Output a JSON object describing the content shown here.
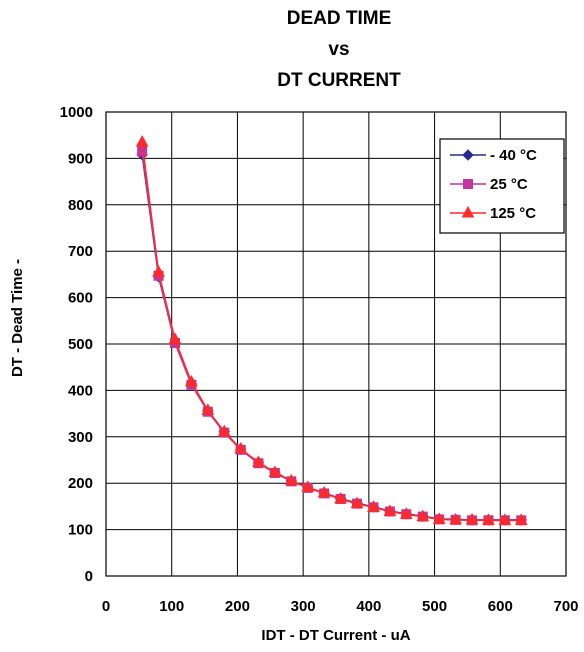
{
  "chart_data": {
    "type": "line",
    "title_lines": [
      "DEAD TIME",
      "vs",
      "DT CURRENT"
    ],
    "xlabel": "IDT - DT Current - uA",
    "ylabel": "DT - Dead Time -",
    "xlim": [
      0,
      700
    ],
    "ylim": [
      0,
      1000
    ],
    "xticks": [
      "0",
      "100",
      "200",
      "300",
      "400",
      "500",
      "600",
      "700"
    ],
    "yticks": [
      "0",
      "100",
      "200",
      "300",
      "400",
      "500",
      "600",
      "700",
      "800",
      "900",
      "1000"
    ],
    "grid": true,
    "legend_position": "top-right",
    "x": [
      55,
      80,
      105,
      130,
      155,
      180,
      205,
      232,
      257,
      282,
      307,
      332,
      357,
      382,
      407,
      432,
      457,
      482,
      507,
      532,
      557,
      582,
      607,
      632
    ],
    "series": [
      {
        "name": "- 40 °C",
        "color": "#2a2a8c",
        "marker": "diamond",
        "values": [
          908,
          645,
          503,
          414,
          356,
          311,
          273,
          244,
          224,
          205,
          191,
          179,
          167,
          157,
          149,
          140,
          134,
          129,
          123,
          122,
          121,
          121,
          121,
          121
        ]
      },
      {
        "name": "25 °C",
        "color": "#c0359e",
        "marker": "square",
        "values": [
          915,
          647,
          502,
          412,
          354,
          309,
          272,
          243,
          222,
          204,
          190,
          178,
          166,
          156,
          148,
          139,
          133,
          128,
          122,
          121,
          120,
          120,
          120,
          120
        ]
      },
      {
        "name": "125 °C",
        "color": "#ff2a2a",
        "marker": "triangle",
        "values": [
          935,
          655,
          510,
          418,
          357,
          311,
          274,
          245,
          223,
          205,
          191,
          179,
          166,
          156,
          148,
          139,
          133,
          128,
          122,
          121,
          121,
          120,
          120,
          120
        ]
      }
    ]
  }
}
